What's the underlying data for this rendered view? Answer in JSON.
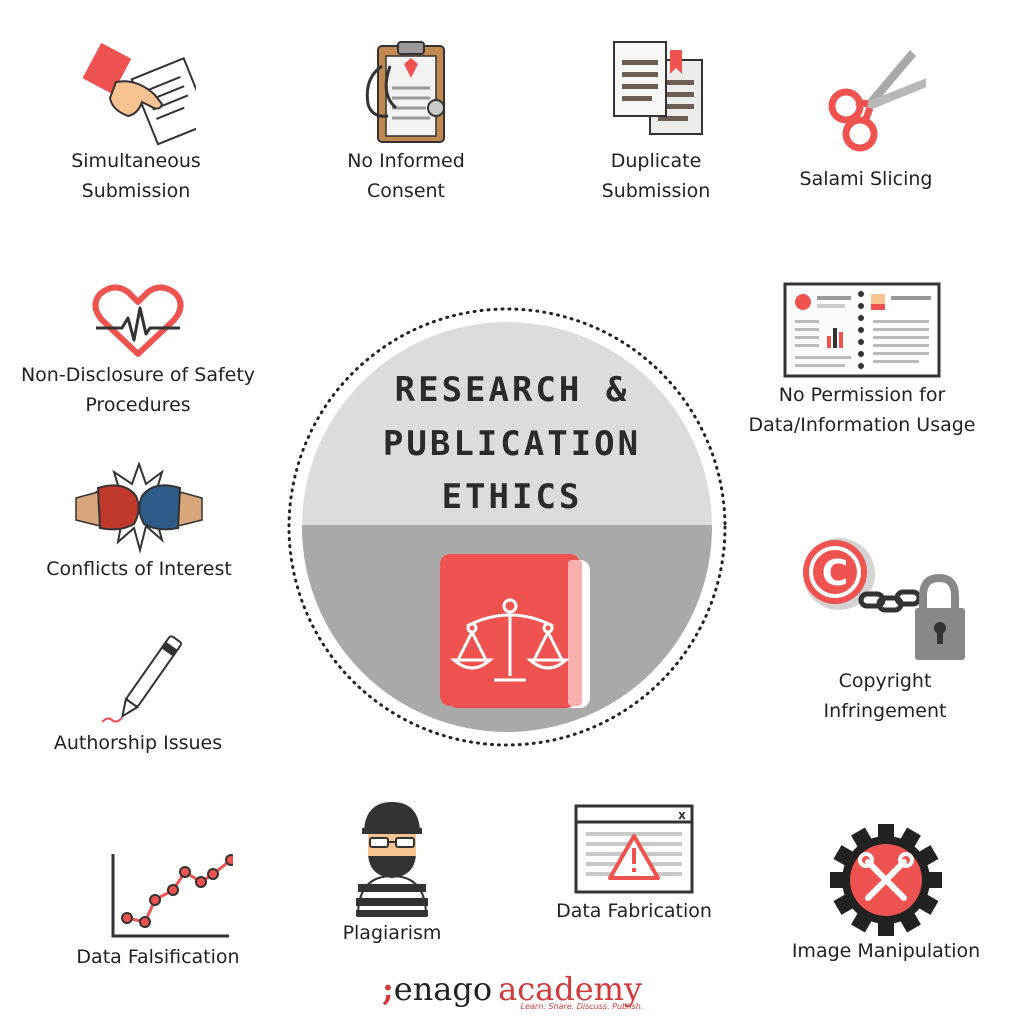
{
  "center": {
    "title_lines": [
      "RESEARCH &",
      "PUBLICATION",
      "ETHICS"
    ],
    "icon": "book-scales-icon"
  },
  "items": [
    {
      "key": "simultaneous",
      "label": "Simultaneous\nSubmission",
      "icon": "hand-document-icon"
    },
    {
      "key": "consent",
      "label": "No Informed\nConsent",
      "icon": "clipboard-stethoscope-icon"
    },
    {
      "key": "duplicate",
      "label": "Duplicate\nSubmission",
      "icon": "duplicate-documents-icon"
    },
    {
      "key": "salami",
      "label": "Salami Slicing",
      "icon": "scissors-icon"
    },
    {
      "key": "safety",
      "label": "Non-Disclosure of Safety\nProcedures",
      "icon": "heartbeat-icon"
    },
    {
      "key": "permission",
      "label": "No Permission for\nData/Information Usage",
      "icon": "open-notebook-icon"
    },
    {
      "key": "conflicts",
      "label": "Conflicts of Interest",
      "icon": "boxing-gloves-icon"
    },
    {
      "key": "copyright",
      "label": "Copyright\nInfringement",
      "icon": "copyright-lock-icon"
    },
    {
      "key": "authorship",
      "label": "Authorship Issues",
      "icon": "pen-icon"
    },
    {
      "key": "falsification",
      "label": "Data Falsification",
      "icon": "line-graph-icon"
    },
    {
      "key": "plagiarism",
      "label": "Plagiarism",
      "icon": "burglar-icon"
    },
    {
      "key": "fabrication",
      "label": "Data Fabrication",
      "icon": "warning-window-icon"
    },
    {
      "key": "manipulation",
      "label": "Image Manipulation",
      "icon": "gear-tools-icon"
    }
  ],
  "logo": {
    "semicolon": ";",
    "enago": "enago",
    "academy": "academy",
    "tagline": "Learn. Share. Discuss. Publish."
  },
  "colors": {
    "accent": "#ef5350",
    "gray_light": "#dcdcdc",
    "gray_dark": "#a9a9a9",
    "text": "#222222"
  }
}
